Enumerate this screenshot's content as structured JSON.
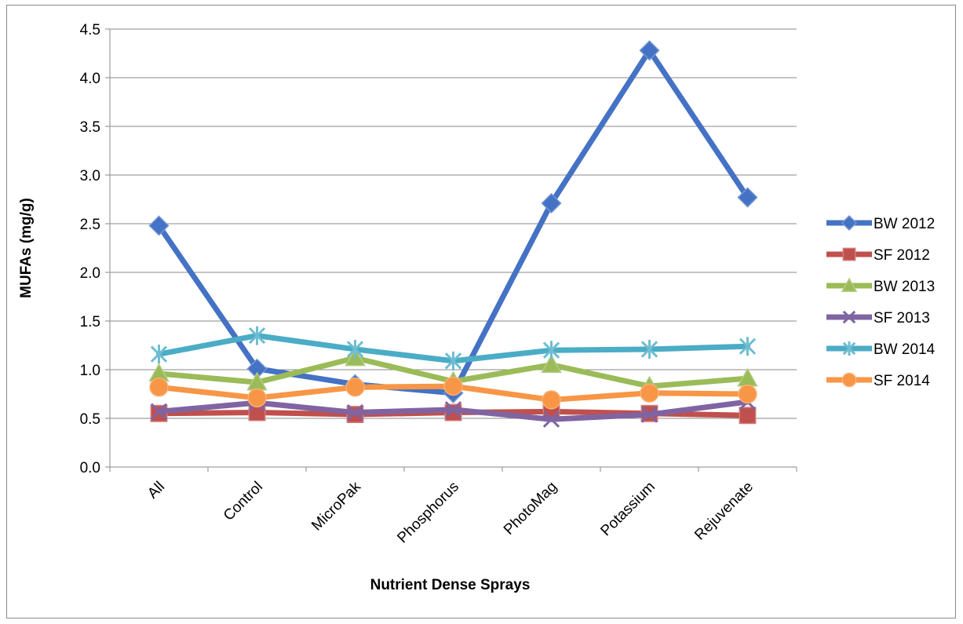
{
  "chart_data": {
    "type": "line",
    "title": "",
    "xlabel": "Nutrient Dense Sprays",
    "ylabel": "MUFAs (mg/g)",
    "categories": [
      "All",
      "Control",
      "MicroPak",
      "Phosphorus",
      "PhotoMag",
      "Potassium",
      "Rejuvenate"
    ],
    "ylim": [
      0,
      4.5
    ],
    "yticks": [
      "0.0",
      "0.5",
      "1.0",
      "1.5",
      "2.0",
      "2.5",
      "3.0",
      "3.5",
      "4.0",
      "4.5"
    ],
    "grid": true,
    "legend_position": "right",
    "series": [
      {
        "name": "BW 2012",
        "color": "#4472C4",
        "marker": "diamond",
        "values": [
          2.48,
          1.01,
          0.85,
          0.76,
          2.71,
          4.28,
          2.77
        ]
      },
      {
        "name": "SF 2012",
        "color": "#C0504D",
        "marker": "square",
        "values": [
          0.55,
          0.56,
          0.54,
          0.56,
          0.57,
          0.55,
          0.53
        ]
      },
      {
        "name": "BW 2013",
        "color": "#9BBB59",
        "marker": "triangle",
        "values": [
          0.96,
          0.87,
          1.12,
          0.88,
          1.05,
          0.83,
          0.91
        ]
      },
      {
        "name": "SF 2013",
        "color": "#8064A2",
        "marker": "x",
        "values": [
          0.57,
          0.66,
          0.56,
          0.59,
          0.49,
          0.54,
          0.67
        ]
      },
      {
        "name": "BW 2014",
        "color": "#4BACC6",
        "marker": "star",
        "values": [
          1.16,
          1.35,
          1.21,
          1.09,
          1.2,
          1.21,
          1.24
        ]
      },
      {
        "name": "SF 2014",
        "color": "#F79646",
        "marker": "circle",
        "values": [
          0.82,
          0.71,
          0.82,
          0.83,
          0.69,
          0.76,
          0.75
        ]
      }
    ]
  }
}
